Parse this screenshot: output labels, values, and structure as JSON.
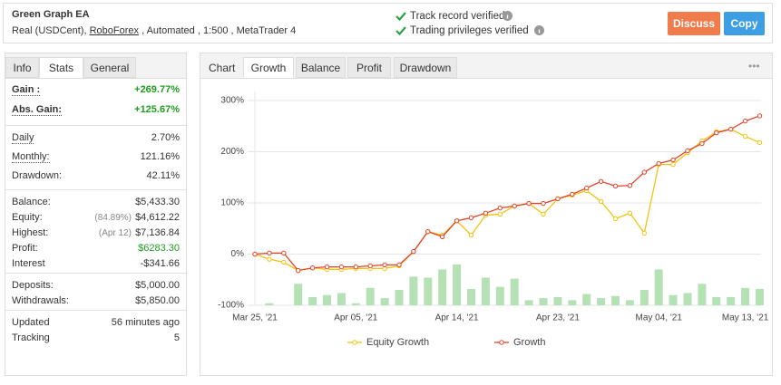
{
  "header": {
    "title": "Green Graph EA",
    "subtitle_prefix": "Real (USDCent),",
    "broker": "RoboForex",
    "subtitle_suffix": ", Automated , 1:500 , MetaTrader 4",
    "verified": [
      "Track record verified",
      "Trading privileges verified"
    ],
    "buttons": [
      "Discuss",
      "Copy"
    ]
  },
  "stats_panel": {
    "tabs": [
      "Info",
      "Stats",
      "General"
    ],
    "active_tab": 1,
    "groups": [
      [
        {
          "label": "Gain :",
          "value": "+269.77%",
          "dotted": true,
          "color": "#1f9d1f",
          "bold": true
        },
        {
          "label": "Abs. Gain:",
          "value": "+125.67%",
          "dotted": true,
          "color": "#1f9d1f",
          "bold": true
        }
      ],
      [
        {
          "label": "Daily",
          "value": "2.70%",
          "dotted": true
        },
        {
          "label": "Monthly:",
          "value": "121.16%",
          "dotted": true
        },
        {
          "label": "Drawdown:",
          "value": "42.11%"
        }
      ],
      [
        {
          "label": "Balance:",
          "value": "$5,433.30"
        },
        {
          "label": "Equity:",
          "note": "(84.89%)",
          "value": "$4,612.22"
        },
        {
          "label": "Highest:",
          "note": "(Apr 12)",
          "value": "$7,136.84"
        },
        {
          "label": "Profit:",
          "value": "$6283.30",
          "color": "#1f9d1f"
        },
        {
          "label": "Interest",
          "value": "-$341.66"
        }
      ],
      [
        {
          "label": "Deposits:",
          "value": "$5,000.00"
        },
        {
          "label": "Withdrawals:",
          "value": "$5,850.00"
        }
      ],
      [
        {
          "label": "Updated",
          "value": "56 minutes ago"
        },
        {
          "label": "Tracking",
          "value": "5"
        }
      ]
    ]
  },
  "chart_panel": {
    "label": "Chart",
    "tabs": [
      "Growth",
      "Balance",
      "Profit",
      "Drawdown"
    ],
    "active_tab": 0,
    "menu": "•••"
  },
  "chart_data": {
    "type": "line",
    "categories": [
      "Mar 25, '21",
      null,
      null,
      null,
      null,
      null,
      null,
      "Apr 05, '21",
      null,
      null,
      null,
      null,
      null,
      null,
      "Apr 14, '21",
      null,
      null,
      null,
      null,
      null,
      null,
      "Apr 23, '21",
      null,
      null,
      null,
      null,
      null,
      null,
      "May 04, '21",
      null,
      null,
      null,
      null,
      null,
      "May 13, '21",
      null
    ],
    "series": [
      {
        "name": "Equity Growth",
        "color": "#f2c30f",
        "values": [
          0,
          -10,
          -16,
          -32,
          -27,
          -30,
          -30,
          -28,
          -28,
          -28,
          -23,
          5,
          44,
          37,
          65,
          37,
          76,
          78,
          94,
          99,
          78,
          108,
          115,
          124,
          103,
          69,
          80,
          41,
          175,
          175,
          198,
          221,
          239,
          244,
          230,
          218
        ]
      },
      {
        "name": "Growth",
        "color": "#e2432a",
        "values": [
          0,
          2,
          2,
          -32,
          -27,
          -25,
          -25,
          -25,
          -23,
          -21,
          -21,
          5,
          44,
          34,
          65,
          71,
          80,
          90,
          94,
          99,
          99,
          108,
          117,
          129,
          142,
          133,
          134,
          160,
          177,
          184,
          202,
          216,
          237,
          244,
          260,
          270
        ]
      }
    ],
    "bars": {
      "color": "#b5e2b5",
      "axis": "y2",
      "values": [
        0,
        2,
        0,
        21,
        8,
        10,
        12,
        2,
        17,
        7,
        15,
        28,
        27,
        35,
        40,
        16,
        27,
        18,
        26,
        5,
        7,
        8,
        5,
        11,
        7,
        9,
        5,
        15,
        35,
        10,
        12,
        21,
        8,
        8,
        17,
        16
      ]
    },
    "ylim": [
      -100,
      300
    ],
    "yticks": [
      {
        "value": -100,
        "label": "-100%"
      },
      {
        "value": 0,
        "label": "0%"
      },
      {
        "value": 100,
        "label": "100%"
      },
      {
        "value": 200,
        "label": "200%"
      },
      {
        "value": 300,
        "label": "300%"
      }
    ],
    "y2lim": [
      0,
      200
    ],
    "grid": true,
    "legend": "bottom"
  }
}
